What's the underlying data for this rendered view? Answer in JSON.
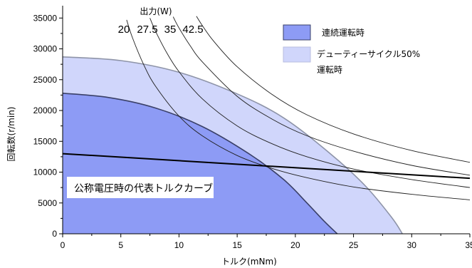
{
  "colors": {
    "continuous_fill": "#8d9bf5",
    "continuous_stroke": "#3a4068",
    "duty_fill": "#d0d6fb",
    "duty_stroke": "#8e94a8",
    "line": "#000000"
  },
  "chart_data": {
    "type": "area",
    "xlabel": "トルク(mNm)",
    "ylabel": "回転数(r/min)",
    "xlim": [
      0,
      35
    ],
    "ylim": [
      0,
      37000
    ],
    "x_ticks": [
      0,
      5,
      10,
      15,
      20,
      25,
      30,
      35
    ],
    "y_ticks": [
      0,
      5000,
      10000,
      15000,
      20000,
      25000,
      30000,
      35000
    ],
    "regions": [
      {
        "name": "連続運転時",
        "x": [
          0,
          4,
          8,
          12,
          16,
          19,
          21,
          22.5,
          23.6
        ],
        "y": [
          22800,
          22100,
          20400,
          17400,
          13000,
          8800,
          5000,
          2000,
          0
        ]
      },
      {
        "name": "デューティーサイクル50%運転時",
        "x": [
          0,
          5,
          10,
          15,
          19,
          23,
          26,
          28.3,
          29.2
        ],
        "y": [
          28700,
          28100,
          26200,
          22700,
          18800,
          13000,
          7800,
          2600,
          0
        ]
      }
    ],
    "nominal_voltage_line": {
      "x": [
        0,
        35
      ],
      "y": [
        13000,
        9000
      ]
    },
    "power_title": "出力(W)",
    "power_curves": [
      {
        "label": "20",
        "watts": 20,
        "x": [
          5.5,
          6,
          7,
          8,
          10,
          12,
          15,
          18,
          21,
          25,
          30,
          35
        ],
        "y": [
          34700,
          31800,
          27300,
          23900,
          19100,
          15900,
          12700,
          10600,
          9100,
          7600,
          6400,
          5500
        ]
      },
      {
        "label": "27.5",
        "watts": 27.5,
        "x": [
          7.5,
          8,
          9,
          10,
          12,
          15,
          18,
          21,
          25,
          30,
          35
        ],
        "y": [
          35000,
          32800,
          29200,
          26300,
          21900,
          17500,
          14600,
          12500,
          10500,
          8800,
          7500
        ]
      },
      {
        "label": "35",
        "watts": 35,
        "x": [
          9.5,
          10,
          11,
          12,
          15,
          18,
          21,
          25,
          30,
          35
        ],
        "y": [
          35200,
          33400,
          30400,
          27900,
          22300,
          18600,
          15900,
          13400,
          11100,
          9500
        ]
      },
      {
        "label": "42.5",
        "watts": 42.5,
        "x": [
          11.5,
          12,
          13,
          15,
          18,
          21,
          25,
          30,
          35
        ],
        "y": [
          35300,
          33800,
          31200,
          27100,
          22600,
          19300,
          16200,
          13500,
          11600
        ]
      }
    ],
    "legend": [
      {
        "label_lines": [
          "連続運転時"
        ],
        "color": "#8d9bf5",
        "border": "#3a4068"
      },
      {
        "label_lines": [
          "デューティーサイクル50%",
          "運転時"
        ],
        "color": "#d0d6fb",
        "border": "#b8bedf"
      }
    ],
    "annotation": "公称電圧時の代表トルクカーブ",
    "grid": false,
    "legend_position": "top-right"
  }
}
